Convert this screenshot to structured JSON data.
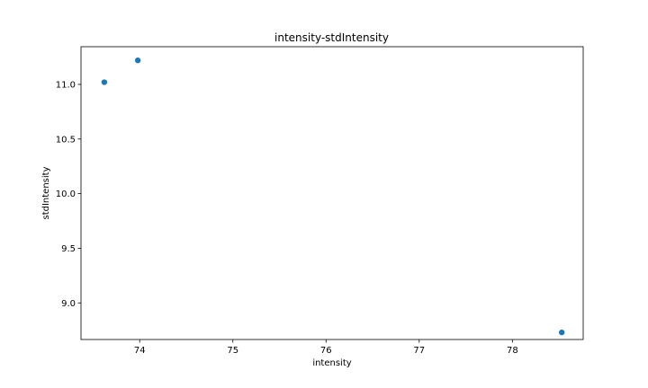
{
  "chart_data": {
    "type": "scatter",
    "title": "intensity-stdIntensity",
    "xlabel": "intensity",
    "ylabel": "stdIntensity",
    "xlim": [
      73.37,
      78.76
    ],
    "ylim": [
      8.665,
      11.345
    ],
    "xticks": [
      74,
      75,
      76,
      77,
      78
    ],
    "xtick_labels": [
      "74",
      "75",
      "76",
      "77",
      "78"
    ],
    "yticks": [
      9.0,
      9.5,
      10.0,
      10.5,
      11.0
    ],
    "ytick_labels": [
      "9.0",
      "9.5",
      "10.0",
      "10.5",
      "11.0"
    ],
    "grid": false,
    "points": [
      {
        "x": 73.62,
        "y": 11.02
      },
      {
        "x": 73.98,
        "y": 11.22
      },
      {
        "x": 78.53,
        "y": 8.73
      }
    ],
    "marker_color": "#1f77b4"
  }
}
